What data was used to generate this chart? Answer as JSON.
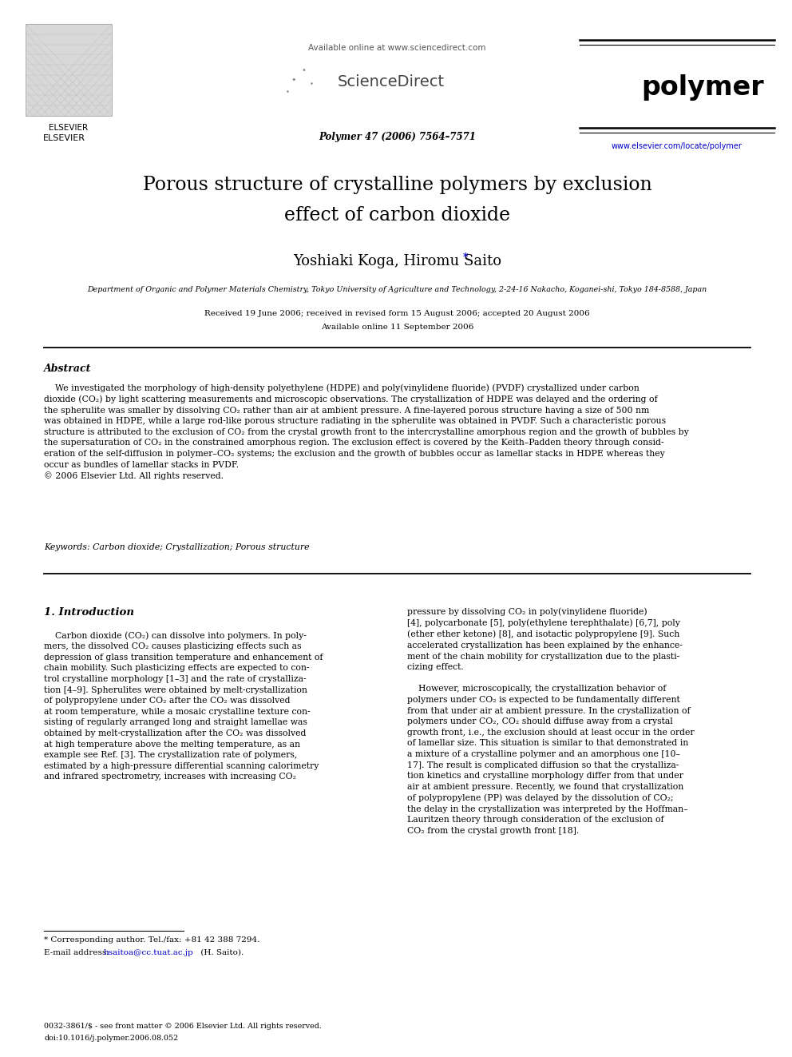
{
  "title_line1": "Porous structure of crystalline polymers by exclusion",
  "title_line2": "effect of carbon dioxide",
  "authors_main": "Yoshiaki Koga, Hiromu Saito",
  "author_star": "*",
  "affiliation": "Department of Organic and Polymer Materials Chemistry, Tokyo University of Agriculture and Technology, 2-24-16 Nakacho, Koganei-shi, Tokyo 184-8588, Japan",
  "received": "Received 19 June 2006; received in revised form 15 August 2006; accepted 20 August 2006",
  "available": "Available online 11 September 2006",
  "journal_ref": "Polymer 47 (2006) 7564–7571",
  "header_avail": "Available online at www.sciencedirect.com",
  "sciencedirect": "ScienceDirect",
  "journal_name": "polymer",
  "url": "www.elsevier.com/locate/polymer",
  "elsevier_text": "ELSEVIER",
  "abstract_title": "Abstract",
  "keywords": "Keywords: Carbon dioxide; Crystallization; Porous structure",
  "section1_title": "1. Introduction",
  "footnote1": "* Corresponding author. Tel./fax: +81 42 388 7294.",
  "footnote2_pre": "E-mail address: ",
  "footnote2_email": "hsaitoa@cc.tuat.ac.jp",
  "footnote2_post": " (H. Saito).",
  "footer1": "0032-3861/$ - see front matter © 2006 Elsevier Ltd. All rights reserved.",
  "footer2": "doi:10.1016/j.polymer.2006.08.052",
  "bg_color": "#ffffff",
  "text_color": "#000000",
  "link_color": "#0000cc",
  "gray_color": "#555555",
  "title_fontsize": 17,
  "author_fontsize": 13,
  "body_fontsize": 7.8,
  "small_fontsize": 7.0,
  "section_title_fontsize": 9.5,
  "abstract_title_fontsize": 9.0
}
